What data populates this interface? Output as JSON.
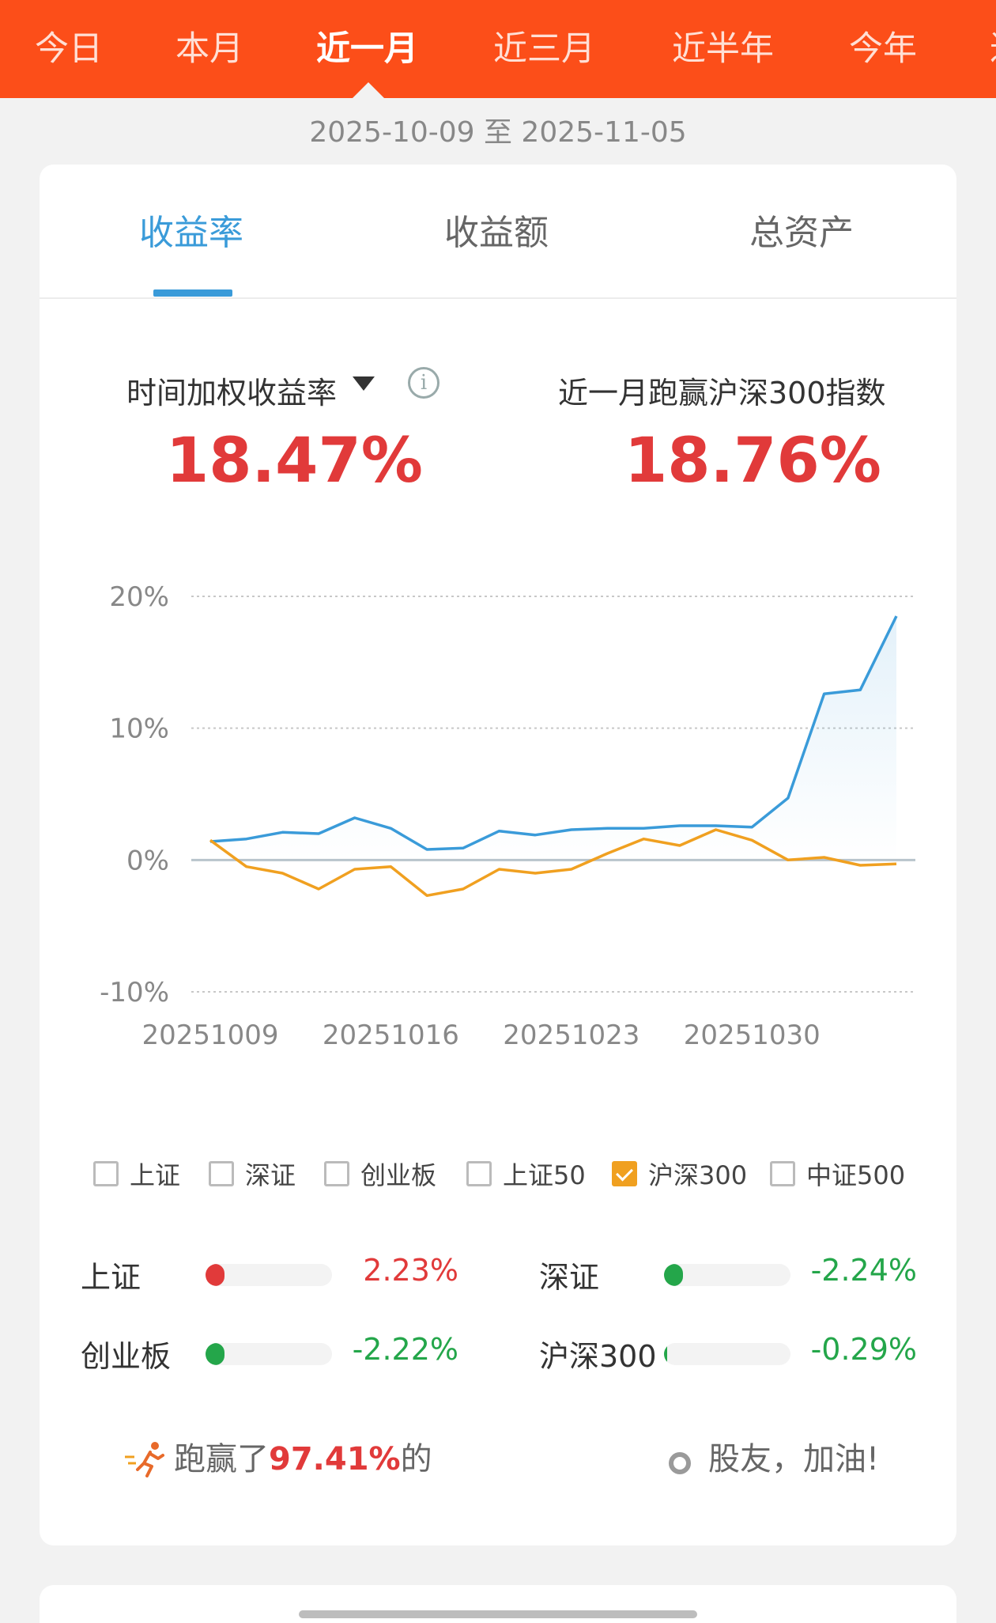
{
  "period_tabs": [
    "今日",
    "本月",
    "近一月",
    "近三月",
    "近半年",
    "今年",
    "过"
  ],
  "active_period": "近一月",
  "date_range": "2025-10-09 至 2025-11-05",
  "metric_tabs": [
    "收益率",
    "收益额",
    "总资产"
  ],
  "active_metric": "收益率",
  "stats": {
    "left_label": "时间加权收益率",
    "left_value": "18.47%",
    "right_label": "近一月跑赢沪深300指数",
    "right_value": "18.76%"
  },
  "chart_data": {
    "type": "line",
    "y_ticks": [
      "20%",
      "10%",
      "0%",
      "-10%"
    ],
    "ylim": [
      -10,
      20
    ],
    "x_ticks": [
      "20251009",
      "20251016",
      "20251023",
      "20251030"
    ],
    "x_tick_index": [
      0,
      5,
      10,
      15
    ],
    "grid": true,
    "colors": {
      "portfolio": "#3a9bd9",
      "benchmark": "#f0a020"
    },
    "series": [
      {
        "key": "portfolio",
        "values": [
          1.4,
          1.6,
          2.1,
          2.0,
          3.2,
          2.4,
          0.8,
          0.9,
          2.2,
          1.9,
          2.3,
          2.4,
          2.4,
          2.6,
          2.6,
          2.5,
          4.7,
          12.6,
          12.9,
          18.5
        ]
      },
      {
        "key": "benchmark",
        "name": "沪深300",
        "values": [
          1.5,
          -0.5,
          -1.0,
          -2.2,
          -0.7,
          -0.5,
          -2.7,
          -2.2,
          -0.7,
          -1.0,
          -0.7,
          0.5,
          1.6,
          1.1,
          2.3,
          1.5,
          0.0,
          0.2,
          -0.4,
          -0.3
        ]
      }
    ]
  },
  "index_checks": [
    {
      "label": "上证",
      "checked": false
    },
    {
      "label": "深证",
      "checked": false
    },
    {
      "label": "创业板",
      "checked": false
    },
    {
      "label": "上证50",
      "checked": false
    },
    {
      "label": "沪深300",
      "checked": true
    },
    {
      "label": "中证500",
      "checked": false
    }
  ],
  "index_returns": [
    {
      "name": "上证",
      "pct": "2.23%",
      "value": 2.23,
      "color": "#e13a3a"
    },
    {
      "name": "深证",
      "pct": "-2.24%",
      "value": -2.24,
      "color": "#24a64a"
    },
    {
      "name": "创业板",
      "pct": "-2.22%",
      "value": -2.22,
      "color": "#24a64a"
    },
    {
      "name": "沪深300",
      "pct": "-0.29%",
      "value": -0.29,
      "color": "#24a64a"
    }
  ],
  "beat": {
    "prefix": "跑赢了",
    "pct": "97.41%",
    "suffix": "的",
    "cheer": "股友，加油!"
  }
}
